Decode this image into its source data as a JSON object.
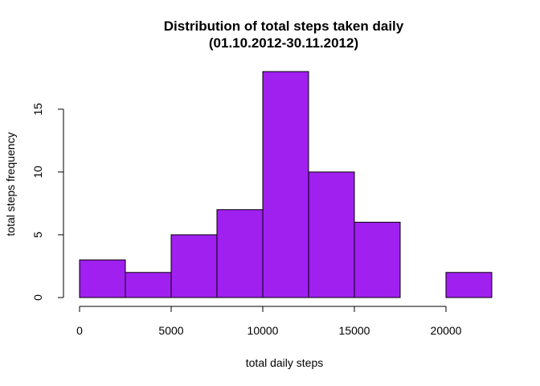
{
  "chart_data": {
    "type": "bar",
    "title": "Distribution of total steps taken daily",
    "subtitle": "(01.10.2012-30.11.2012)",
    "xlabel": "total daily steps",
    "ylabel": "total steps frequency",
    "bin_edges": [
      0,
      2500,
      5000,
      7500,
      10000,
      12500,
      15000,
      17500,
      20000,
      22500
    ],
    "values": [
      3,
      2,
      5,
      7,
      18,
      10,
      6,
      0,
      2
    ],
    "xlim": [
      0,
      22500
    ],
    "ylim": [
      0,
      18
    ],
    "x_ticks": [
      0,
      5000,
      10000,
      15000,
      20000
    ],
    "x_tick_labels": [
      "0",
      "5000",
      "10000",
      "15000",
      "20000"
    ],
    "y_ticks": [
      0,
      5,
      10,
      15
    ],
    "y_tick_labels": [
      "0",
      "5",
      "10",
      "15"
    ],
    "bar_color": "#A020F0",
    "grid": false,
    "legend": "none"
  }
}
